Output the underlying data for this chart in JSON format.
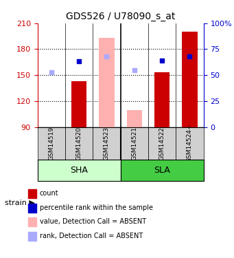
{
  "title": "GDS526 / U78090_s_at",
  "samples": [
    "GSM14519",
    "GSM14520",
    "GSM14523",
    "GSM14521",
    "GSM14522",
    "GSM14524+"
  ],
  "ylim": [
    90,
    210
  ],
  "yticks": [
    90,
    120,
    150,
    180,
    210
  ],
  "right_labels": [
    "0",
    "25",
    "50",
    "75",
    "100%"
  ],
  "bar_values": [
    null,
    143,
    null,
    null,
    153,
    200
  ],
  "bar_absent_values": [
    null,
    null,
    193,
    110,
    null,
    null
  ],
  "dot_present_values": [
    null,
    166,
    null,
    null,
    167,
    172
  ],
  "dot_absent_values": [
    153,
    null,
    172,
    156,
    null,
    null
  ],
  "bar_color": "#cc0000",
  "bar_absent_color": "#ffb0b0",
  "dot_present_color": "#0000cc",
  "dot_absent_color": "#aaaaff",
  "sha_color": "#ccffcc",
  "sla_color": "#44cc44",
  "sample_bg_color": "#d0d0d0",
  "left_axis_color": "#cc0000",
  "right_axis_color": "#0000cc"
}
